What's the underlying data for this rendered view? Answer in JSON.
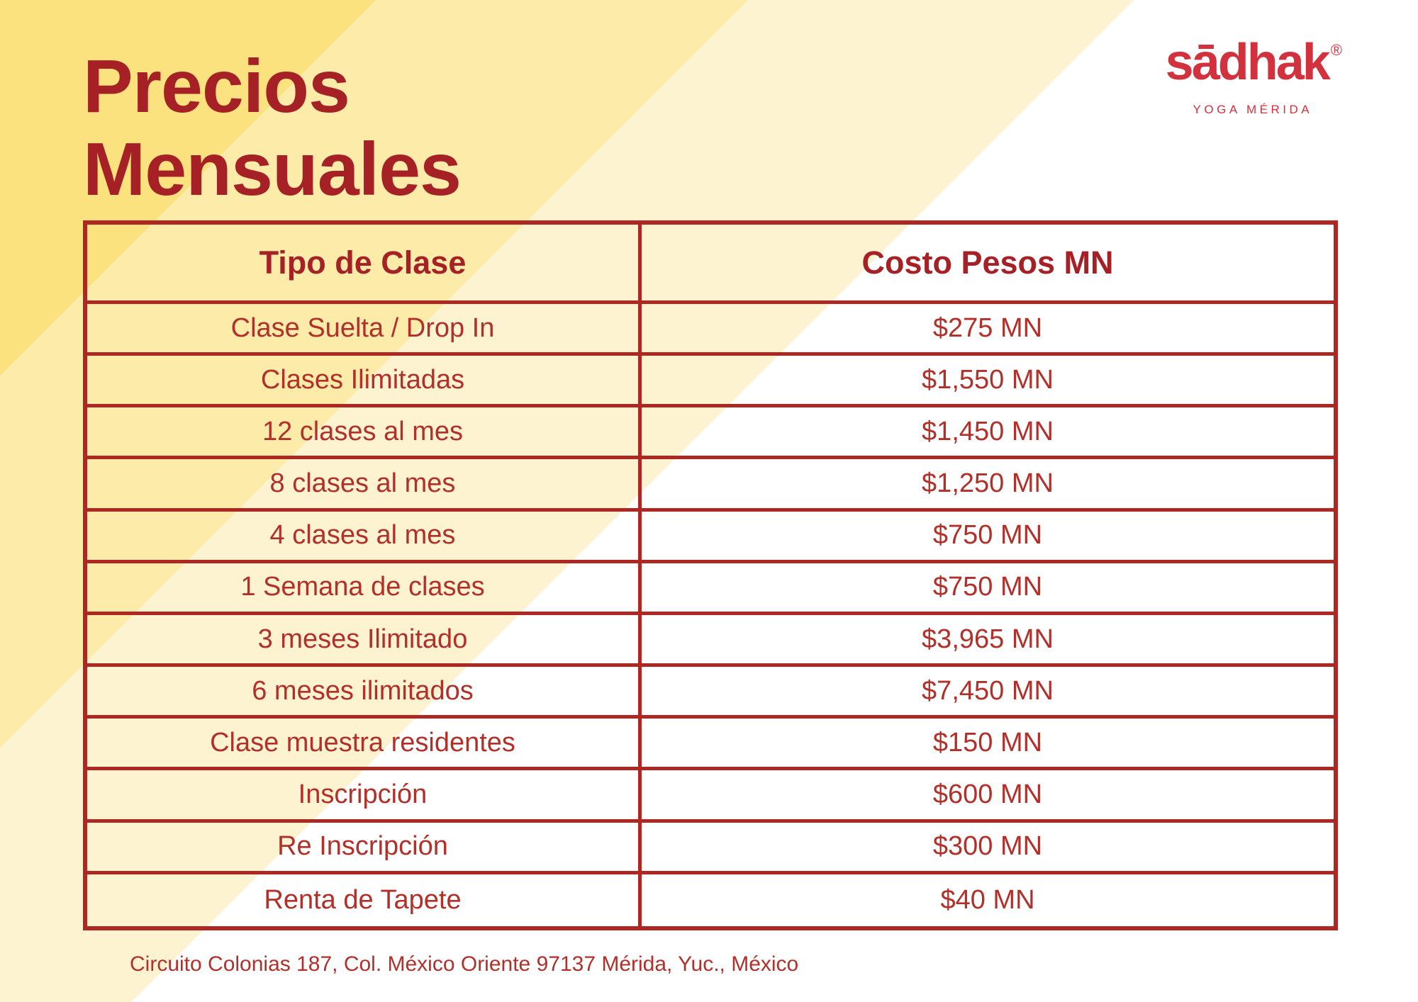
{
  "title": {
    "line1": "Precios",
    "line2": "Mensuales"
  },
  "logo": {
    "wordmark": "sādhak",
    "registered": "®",
    "tagline": "YOGA MÉRIDA"
  },
  "table": {
    "columns": [
      "Tipo de Clase",
      "Costo Pesos MN"
    ],
    "rows": [
      {
        "tipo": "Clase Suelta / Drop In",
        "costo": "$275 MN"
      },
      {
        "tipo": "Clases Ilimitadas",
        "costo": "$1,550 MN"
      },
      {
        "tipo": "12 clases al mes",
        "costo": "$1,450 MN"
      },
      {
        "tipo": "8 clases al mes",
        "costo": "$1,250 MN"
      },
      {
        "tipo": "4 clases al mes",
        "costo": "$750 MN"
      },
      {
        "tipo": "1 Semana de clases",
        "costo": "$750 MN"
      },
      {
        "tipo": "3 meses Ilimitado",
        "costo": "$3,965 MN"
      },
      {
        "tipo": "6 meses ilimitados",
        "costo": "$7,450 MN"
      },
      {
        "tipo": "Clase muestra residentes",
        "costo": "$150 MN"
      },
      {
        "tipo": "Inscripción",
        "costo": "$600 MN"
      },
      {
        "tipo": "Re Inscripción",
        "costo": "$300 MN"
      },
      {
        "tipo": "Renta de Tapete",
        "costo": "$40 MN"
      }
    ]
  },
  "footer": {
    "address": "Circuito Colonias 187, Col. México Oriente 97137 Mérida, Yuc., México"
  },
  "colors": {
    "stripe1": "#FBE27F",
    "stripe2": "#FCEBA9",
    "stripe3": "#FDF3D0",
    "stripe4": "#FFFFFF",
    "title_red": "#A62126",
    "border_red": "#AE2823",
    "text_red": "#B2302A",
    "logo_red": "#D2323E"
  }
}
